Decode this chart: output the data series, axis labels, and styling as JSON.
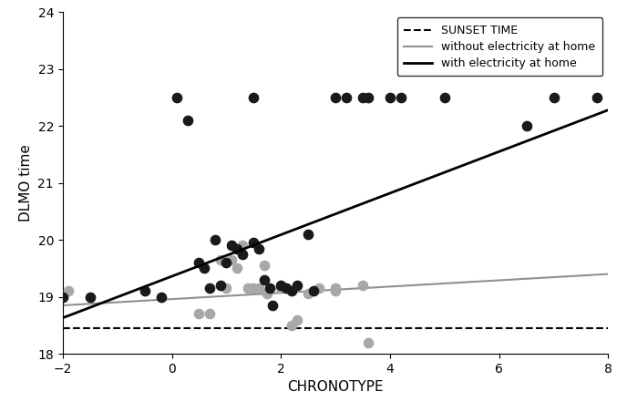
{
  "title": "",
  "xlabel": "CHRONOTYPE",
  "ylabel": "DLMO time",
  "xlim": [
    -2,
    8
  ],
  "ylim": [
    18,
    24
  ],
  "yticks": [
    18,
    19,
    20,
    21,
    22,
    23,
    24
  ],
  "xticks": [
    -2,
    0,
    2,
    4,
    6,
    8
  ],
  "sunset_y": 18.45,
  "black_dots": [
    [
      -2.0,
      19.0
    ],
    [
      -1.5,
      19.0
    ],
    [
      -0.5,
      19.1
    ],
    [
      -0.2,
      19.0
    ],
    [
      0.1,
      22.5
    ],
    [
      0.3,
      22.1
    ],
    [
      0.5,
      19.6
    ],
    [
      0.6,
      19.5
    ],
    [
      0.7,
      19.15
    ],
    [
      0.8,
      20.0
    ],
    [
      0.9,
      19.2
    ],
    [
      1.0,
      19.6
    ],
    [
      1.1,
      19.9
    ],
    [
      1.2,
      19.85
    ],
    [
      1.3,
      19.75
    ],
    [
      1.5,
      22.5
    ],
    [
      1.5,
      19.95
    ],
    [
      1.6,
      19.85
    ],
    [
      1.7,
      19.3
    ],
    [
      1.8,
      19.15
    ],
    [
      1.85,
      18.85
    ],
    [
      2.0,
      19.2
    ],
    [
      2.1,
      19.15
    ],
    [
      2.2,
      19.1
    ],
    [
      2.3,
      19.2
    ],
    [
      2.5,
      20.1
    ],
    [
      2.6,
      19.1
    ],
    [
      3.0,
      22.5
    ],
    [
      3.2,
      22.5
    ],
    [
      3.5,
      22.5
    ],
    [
      3.6,
      22.5
    ],
    [
      4.0,
      22.5
    ],
    [
      4.2,
      22.5
    ],
    [
      5.0,
      22.5
    ],
    [
      6.5,
      22.0
    ],
    [
      7.0,
      22.5
    ],
    [
      7.8,
      22.5
    ]
  ],
  "gray_dots": [
    [
      -1.9,
      19.1
    ],
    [
      0.5,
      18.7
    ],
    [
      0.7,
      18.7
    ],
    [
      0.9,
      19.65
    ],
    [
      1.0,
      19.15
    ],
    [
      1.1,
      19.65
    ],
    [
      1.2,
      19.5
    ],
    [
      1.3,
      19.9
    ],
    [
      1.4,
      19.15
    ],
    [
      1.5,
      19.15
    ],
    [
      1.6,
      19.15
    ],
    [
      1.7,
      19.55
    ],
    [
      1.75,
      19.05
    ],
    [
      2.0,
      19.15
    ],
    [
      2.1,
      19.15
    ],
    [
      2.2,
      18.5
    ],
    [
      2.5,
      19.05
    ],
    [
      3.0,
      19.15
    ],
    [
      3.5,
      19.2
    ],
    [
      3.6,
      18.2
    ],
    [
      2.3,
      18.6
    ],
    [
      2.7,
      19.15
    ],
    [
      3.0,
      19.1
    ]
  ],
  "black_line": {
    "x0": -2,
    "y0": 18.63,
    "x1": 8,
    "y1": 22.28
  },
  "gray_line": {
    "x0": -2,
    "y0": 18.85,
    "x1": 8,
    "y1": 19.4
  },
  "legend_labels": [
    "SUNSET TIME",
    "without electricity at home",
    "with electricity at home"
  ],
  "dot_size": 55,
  "black_color": "#1a1a1a",
  "gray_color": "#a8a8a8",
  "line_black_color": "#000000",
  "line_gray_color": "#909090",
  "figsize": [
    6.88,
    4.41
  ],
  "dpi": 100
}
